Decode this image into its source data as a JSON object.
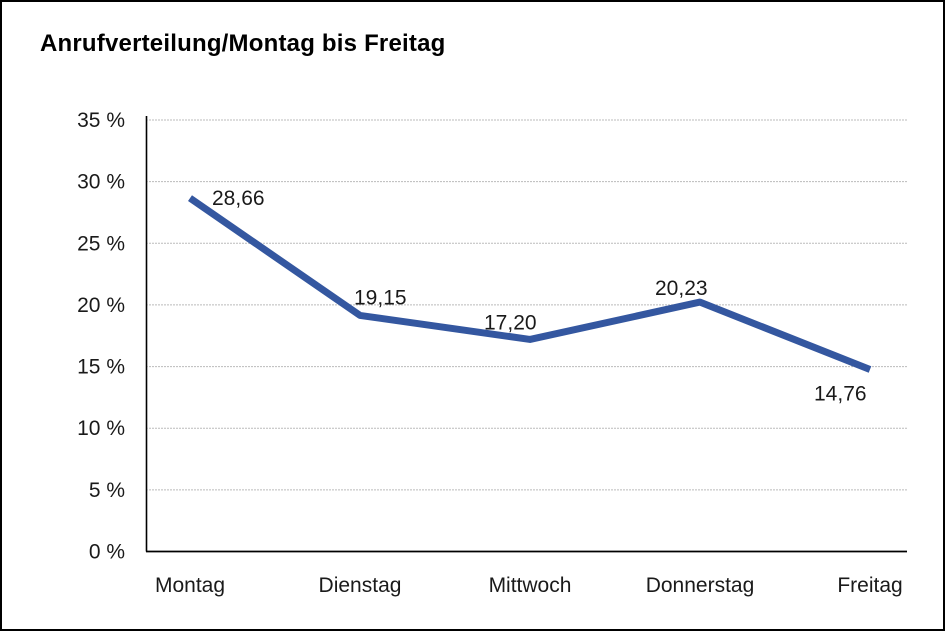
{
  "title": "Anrufverteilung/Montag bis Freitag",
  "chart_data": {
    "type": "line",
    "title": "Anrufverteilung/Montag bis Freitag",
    "categories": [
      "Montag",
      "Dienstag",
      "Mittwoch",
      "Donnerstag",
      "Freitag"
    ],
    "values": [
      28.66,
      19.15,
      17.2,
      20.23,
      14.76
    ],
    "value_labels": [
      "28,66",
      "19,15",
      "17,20",
      "20,23",
      "14,76"
    ],
    "xlabel": "",
    "ylabel": "",
    "ylim": [
      0,
      35
    ],
    "ytick_step": 5,
    "ytick_suffix": " %",
    "ytick_labels": [
      "0 %",
      "5 %",
      "10 %",
      "15 %",
      "20 %",
      "25 %",
      "30 %",
      "35 %"
    ],
    "grid": "horizontal-dotted",
    "legend": "none",
    "line_color": "#3457A0",
    "axis_color": "#000000",
    "gridline_color": "#777777",
    "label_color": "#1a1a1a"
  }
}
